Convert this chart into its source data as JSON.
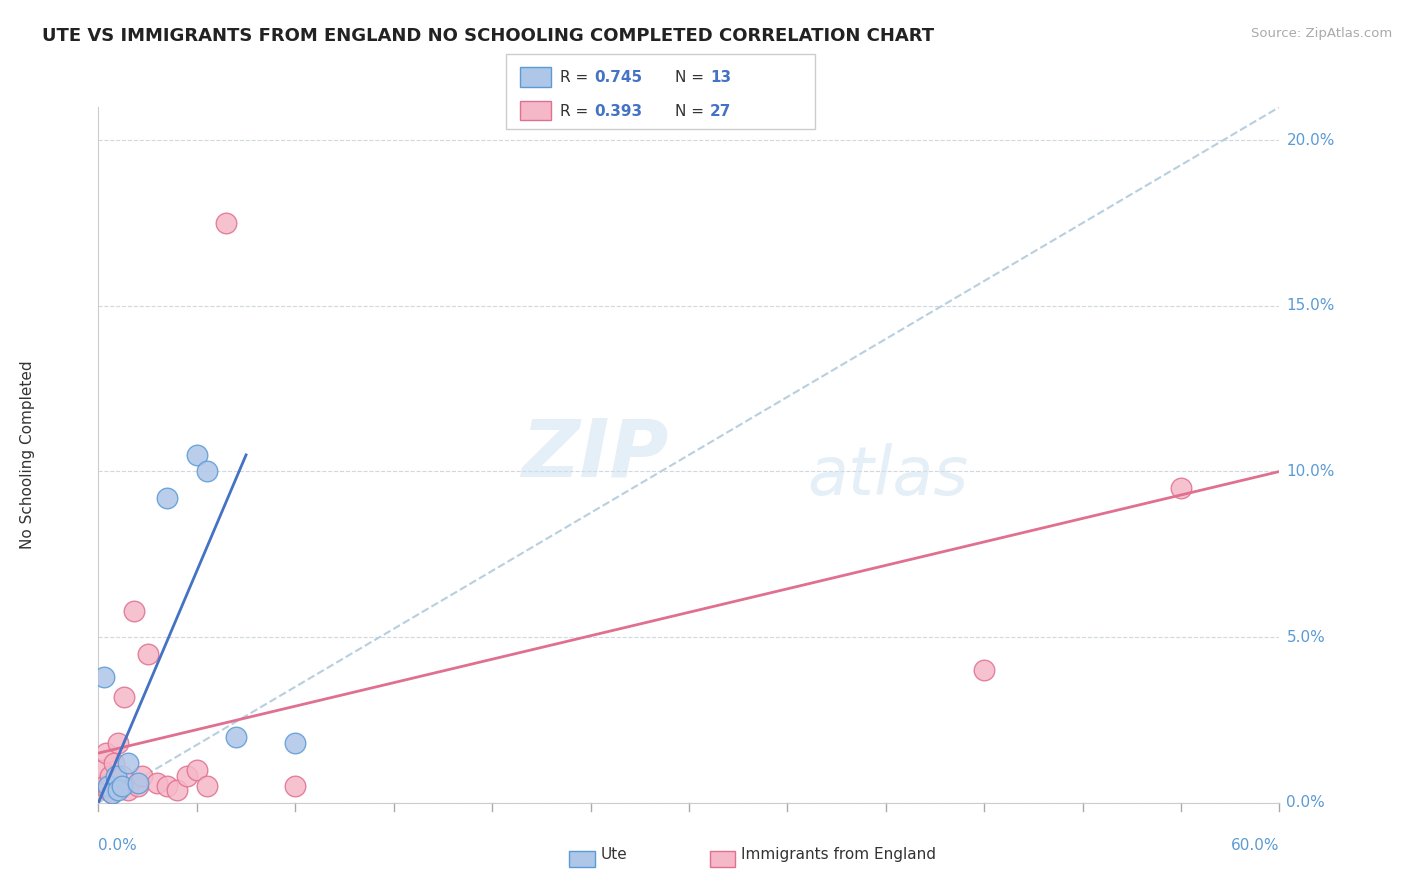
{
  "title": "UTE VS IMMIGRANTS FROM ENGLAND NO SCHOOLING COMPLETED CORRELATION CHART",
  "source": "Source: ZipAtlas.com",
  "ylabel": "No Schooling Completed",
  "ytick_vals": [
    0.0,
    5.0,
    10.0,
    15.0,
    20.0
  ],
  "xlim": [
    0.0,
    60.0
  ],
  "ylim": [
    0.0,
    21.0
  ],
  "legend_r1": "R = 0.745",
  "legend_n1": "N = 13",
  "legend_r2": "R = 0.393",
  "legend_n2": "N = 27",
  "legend_label1": "Ute",
  "legend_label2": "Immigrants from England",
  "color_ute_fill": "#aec6e8",
  "color_ute_edge": "#5b9bd5",
  "color_england_fill": "#f5b8c8",
  "color_england_edge": "#e07090",
  "color_ute_line": "#4472c4",
  "color_england_line": "#e07090",
  "color_dash": "#b8cfe0",
  "color_r_val": "#4472c4",
  "color_n_val": "#4472c4",
  "color_text": "#333333",
  "color_tick": "#5b9bd5",
  "color_grid": "#d0d8e0",
  "background_color": "#ffffff",
  "ute_points": [
    [
      0.3,
      3.8
    ],
    [
      0.5,
      0.5
    ],
    [
      0.7,
      0.3
    ],
    [
      0.9,
      0.8
    ],
    [
      1.0,
      0.4
    ],
    [
      1.2,
      0.5
    ],
    [
      1.5,
      1.2
    ],
    [
      2.0,
      0.6
    ],
    [
      3.5,
      9.2
    ],
    [
      5.0,
      10.5
    ],
    [
      5.5,
      10.0
    ],
    [
      7.0,
      2.0
    ],
    [
      10.0,
      1.8
    ]
  ],
  "england_points": [
    [
      0.2,
      1.0
    ],
    [
      0.3,
      0.5
    ],
    [
      0.4,
      1.5
    ],
    [
      0.5,
      0.4
    ],
    [
      0.6,
      0.8
    ],
    [
      0.7,
      0.3
    ],
    [
      0.8,
      1.2
    ],
    [
      0.9,
      0.6
    ],
    [
      1.0,
      1.8
    ],
    [
      1.1,
      0.5
    ],
    [
      1.2,
      0.8
    ],
    [
      1.3,
      3.2
    ],
    [
      1.5,
      0.4
    ],
    [
      1.8,
      5.8
    ],
    [
      2.0,
      0.5
    ],
    [
      2.2,
      0.8
    ],
    [
      2.5,
      4.5
    ],
    [
      3.0,
      0.6
    ],
    [
      3.5,
      0.5
    ],
    [
      4.0,
      0.4
    ],
    [
      4.5,
      0.8
    ],
    [
      5.0,
      1.0
    ],
    [
      5.5,
      0.5
    ],
    [
      6.5,
      17.5
    ],
    [
      10.0,
      0.5
    ],
    [
      45.0,
      4.0
    ],
    [
      55.0,
      9.5
    ]
  ],
  "ute_line": {
    "x0": 0.0,
    "y0": 0.0,
    "x1": 7.5,
    "y1": 10.5
  },
  "england_line": {
    "x0": 0.0,
    "y0": 1.5,
    "x1": 60.0,
    "y1": 10.0
  },
  "dashed_line": {
    "x0": 0.0,
    "y0": 0.0,
    "x1": 60.0,
    "y1": 21.0
  },
  "watermark_zip": "ZIP",
  "watermark_atlas": "atlas"
}
